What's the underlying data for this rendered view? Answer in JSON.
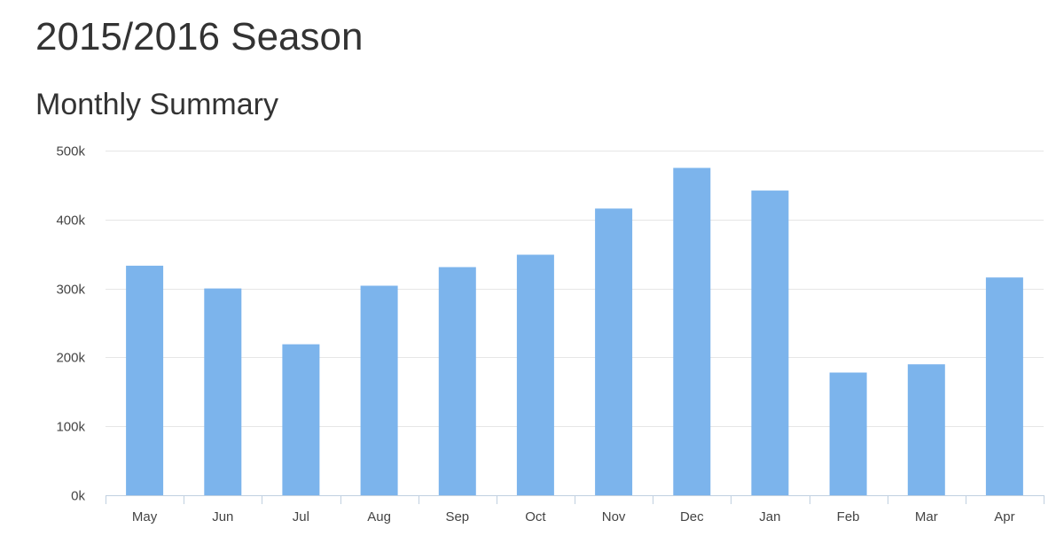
{
  "header": {
    "title": "2015/2016 Season",
    "subtitle": "Monthly Summary"
  },
  "chart_data": {
    "type": "bar",
    "title": "Monthly Summary",
    "xlabel": "",
    "ylabel": "",
    "categories": [
      "May",
      "Jun",
      "Jul",
      "Aug",
      "Sep",
      "Oct",
      "Nov",
      "Dec",
      "Jan",
      "Feb",
      "Mar",
      "Apr"
    ],
    "values": [
      333000,
      300000,
      219000,
      304000,
      331000,
      349000,
      416000,
      475000,
      442000,
      178000,
      190000,
      316000
    ],
    "ylim": [
      0,
      500000
    ],
    "yticks": [
      0,
      100000,
      200000,
      300000,
      400000,
      500000
    ],
    "ytick_labels": [
      "0k",
      "100k",
      "200k",
      "300k",
      "400k",
      "500k"
    ],
    "grid": true,
    "legend": "none",
    "bar_color": "#7cb4ec",
    "grid_color": "#e6e6e6",
    "axis_color": "#c0d0e0"
  }
}
